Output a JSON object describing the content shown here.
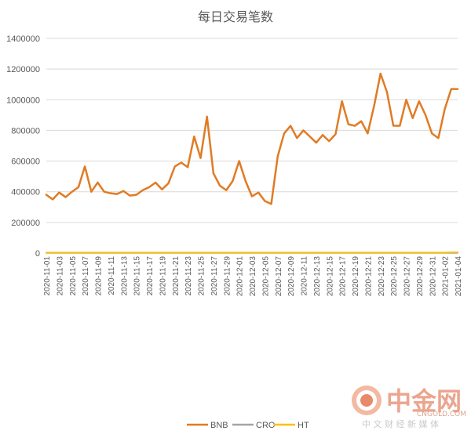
{
  "chart_data": {
    "type": "line",
    "title": "每日交易笔数",
    "xlabel": "",
    "ylabel": "",
    "ylim": [
      0,
      1400000
    ],
    "y_ticks": [
      0,
      200000,
      400000,
      600000,
      800000,
      1000000,
      1200000,
      1400000
    ],
    "y_tick_labels": [
      "0",
      "200000",
      "400000",
      "600000",
      "800000",
      "1000000",
      "1200000",
      "1400000"
    ],
    "x": [
      "2020-11-01",
      "2020-11-02",
      "2020-11-03",
      "2020-11-04",
      "2020-11-05",
      "2020-11-06",
      "2020-11-07",
      "2020-11-08",
      "2020-11-09",
      "2020-11-10",
      "2020-11-11",
      "2020-11-12",
      "2020-11-13",
      "2020-11-14",
      "2020-11-15",
      "2020-11-16",
      "2020-11-17",
      "2020-11-18",
      "2020-11-19",
      "2020-11-20",
      "2020-11-21",
      "2020-11-22",
      "2020-11-23",
      "2020-11-24",
      "2020-11-25",
      "2020-11-26",
      "2020-11-27",
      "2020-11-28",
      "2020-11-29",
      "2020-11-30",
      "2020-12-01",
      "2020-12-02",
      "2020-12-03",
      "2020-12-04",
      "2020-12-05",
      "2020-12-06",
      "2020-12-07",
      "2020-12-08",
      "2020-12-09",
      "2020-12-10",
      "2020-12-11",
      "2020-12-12",
      "2020-12-13",
      "2020-12-14",
      "2020-12-15",
      "2020-12-16",
      "2020-12-17",
      "2020-12-18",
      "2020-12-19",
      "2020-12-20",
      "2020-12-21",
      "2020-12-22",
      "2020-12-23",
      "2020-12-24",
      "2020-12-25",
      "2020-12-26",
      "2020-12-27",
      "2020-12-28",
      "2020-12-29",
      "2020-12-30",
      "2020-12-31",
      "2021-01-01",
      "2021-01-02",
      "2021-01-03",
      "2021-01-04"
    ],
    "x_tick_labels": [
      "2020-11-01",
      "2020-11-03",
      "2020-11-05",
      "2020-11-07",
      "2020-11-09",
      "2020-11-11",
      "2020-11-13",
      "2020-11-15",
      "2020-11-17",
      "2020-11-19",
      "2020-11-21",
      "2020-11-23",
      "2020-11-25",
      "2020-11-27",
      "2020-11-29",
      "2020-12-01",
      "2020-12-03",
      "2020-12-05",
      "2020-12-07",
      "2020-12-09",
      "2020-12-11",
      "2020-12-13",
      "2020-12-15",
      "2020-12-17",
      "2020-12-19",
      "2020-12-21",
      "2020-12-23",
      "2020-12-25",
      "2020-12-27",
      "2020-12-29",
      "2020-12-31",
      "2021-01-02",
      "2021-01-04"
    ],
    "series": [
      {
        "name": "BNB",
        "color": "#E07B24",
        "values": [
          380000,
          350000,
          395000,
          365000,
          400000,
          430000,
          565000,
          400000,
          460000,
          400000,
          390000,
          385000,
          405000,
          375000,
          380000,
          410000,
          430000,
          460000,
          415000,
          455000,
          565000,
          590000,
          560000,
          760000,
          620000,
          890000,
          520000,
          440000,
          410000,
          470000,
          600000,
          470000,
          370000,
          395000,
          340000,
          320000,
          630000,
          780000,
          830000,
          750000,
          800000,
          760000,
          720000,
          770000,
          730000,
          775000,
          990000,
          840000,
          830000,
          860000,
          780000,
          960000,
          1170000,
          1050000,
          830000,
          830000,
          1000000,
          880000,
          990000,
          900000,
          780000,
          750000,
          940000,
          1070000,
          1070000
        ]
      },
      {
        "name": "CRO",
        "color": "#A5A5A5",
        "values": [
          1500,
          1500,
          1500,
          1500,
          1500,
          1500,
          1500,
          1500,
          1500,
          1500,
          1500,
          1500,
          1500,
          1500,
          1500,
          1500,
          1500,
          1500,
          1500,
          1500,
          1500,
          1500,
          1500,
          1500,
          1500,
          1500,
          1500,
          1500,
          1500,
          1500,
          1500,
          1500,
          1500,
          1500,
          1500,
          1500,
          1500,
          1500,
          1500,
          1500,
          1500,
          1500,
          1500,
          1500,
          1500,
          1500,
          1500,
          1500,
          1500,
          1500,
          1500,
          1500,
          1500,
          1500,
          1500,
          1500,
          1500,
          1500,
          1500,
          1500,
          1500,
          1500,
          1500,
          1500,
          1500
        ]
      },
      {
        "name": "HT",
        "color": "#FFC000",
        "values": [
          3000,
          3000,
          3000,
          3000,
          3000,
          3000,
          3000,
          3000,
          3000,
          3000,
          3000,
          3000,
          3000,
          3000,
          3000,
          3000,
          3000,
          3000,
          3000,
          3000,
          3000,
          3000,
          3000,
          3000,
          3000,
          3000,
          3000,
          3000,
          3000,
          3000,
          3000,
          3000,
          3000,
          3000,
          3000,
          3000,
          3000,
          3000,
          3000,
          3000,
          3000,
          3000,
          3000,
          3000,
          3000,
          3000,
          3000,
          3000,
          3000,
          3000,
          3000,
          3000,
          3000,
          3000,
          3000,
          3000,
          3000,
          3000,
          3000,
          3000,
          3000,
          3000,
          3000,
          5000,
          5000
        ]
      }
    ],
    "legend_position": "bottom",
    "grid": true
  },
  "watermark": {
    "name": "中金网",
    "domain": "CNGOLD.COM",
    "slogan": "中 文 财 经 新 媒 体",
    "color": "#E8896A"
  }
}
